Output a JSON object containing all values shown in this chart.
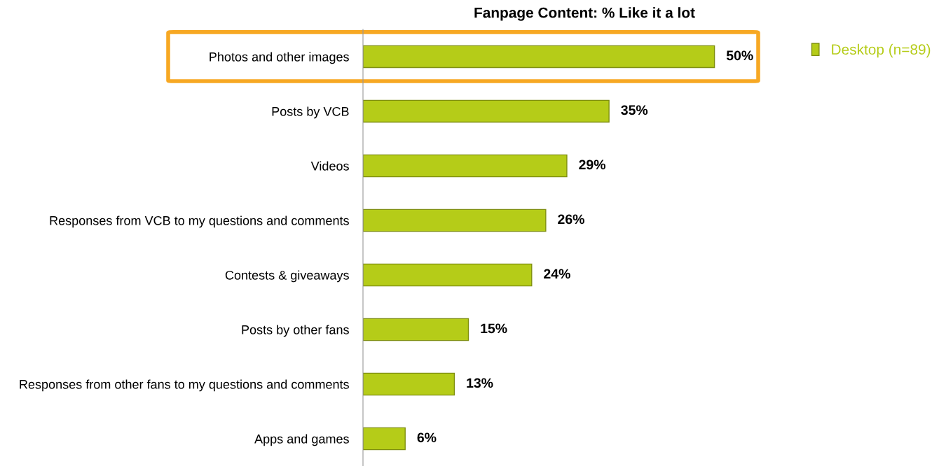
{
  "chart_data": {
    "type": "bar",
    "orientation": "horizontal",
    "title": "Fanpage Content: % Like it a lot",
    "categories": [
      "Photos and other images",
      "Posts by VCB",
      "Videos",
      "Responses from VCB to my questions and comments",
      "Contests & giveaways",
      "Posts by other fans",
      "Responses from other fans to my questions and comments",
      "Apps and games"
    ],
    "series": [
      {
        "name": "Desktop (n=89)",
        "color": "#b5cc18",
        "values": [
          50,
          35,
          29,
          26,
          24,
          15,
          13,
          6
        ],
        "value_labels": [
          "50%",
          "35%",
          "29%",
          "26%",
          "24%",
          "15%",
          "13%",
          "6%"
        ]
      }
    ],
    "legend": "top right",
    "grid": false,
    "tick_labels": "y"
  }
}
